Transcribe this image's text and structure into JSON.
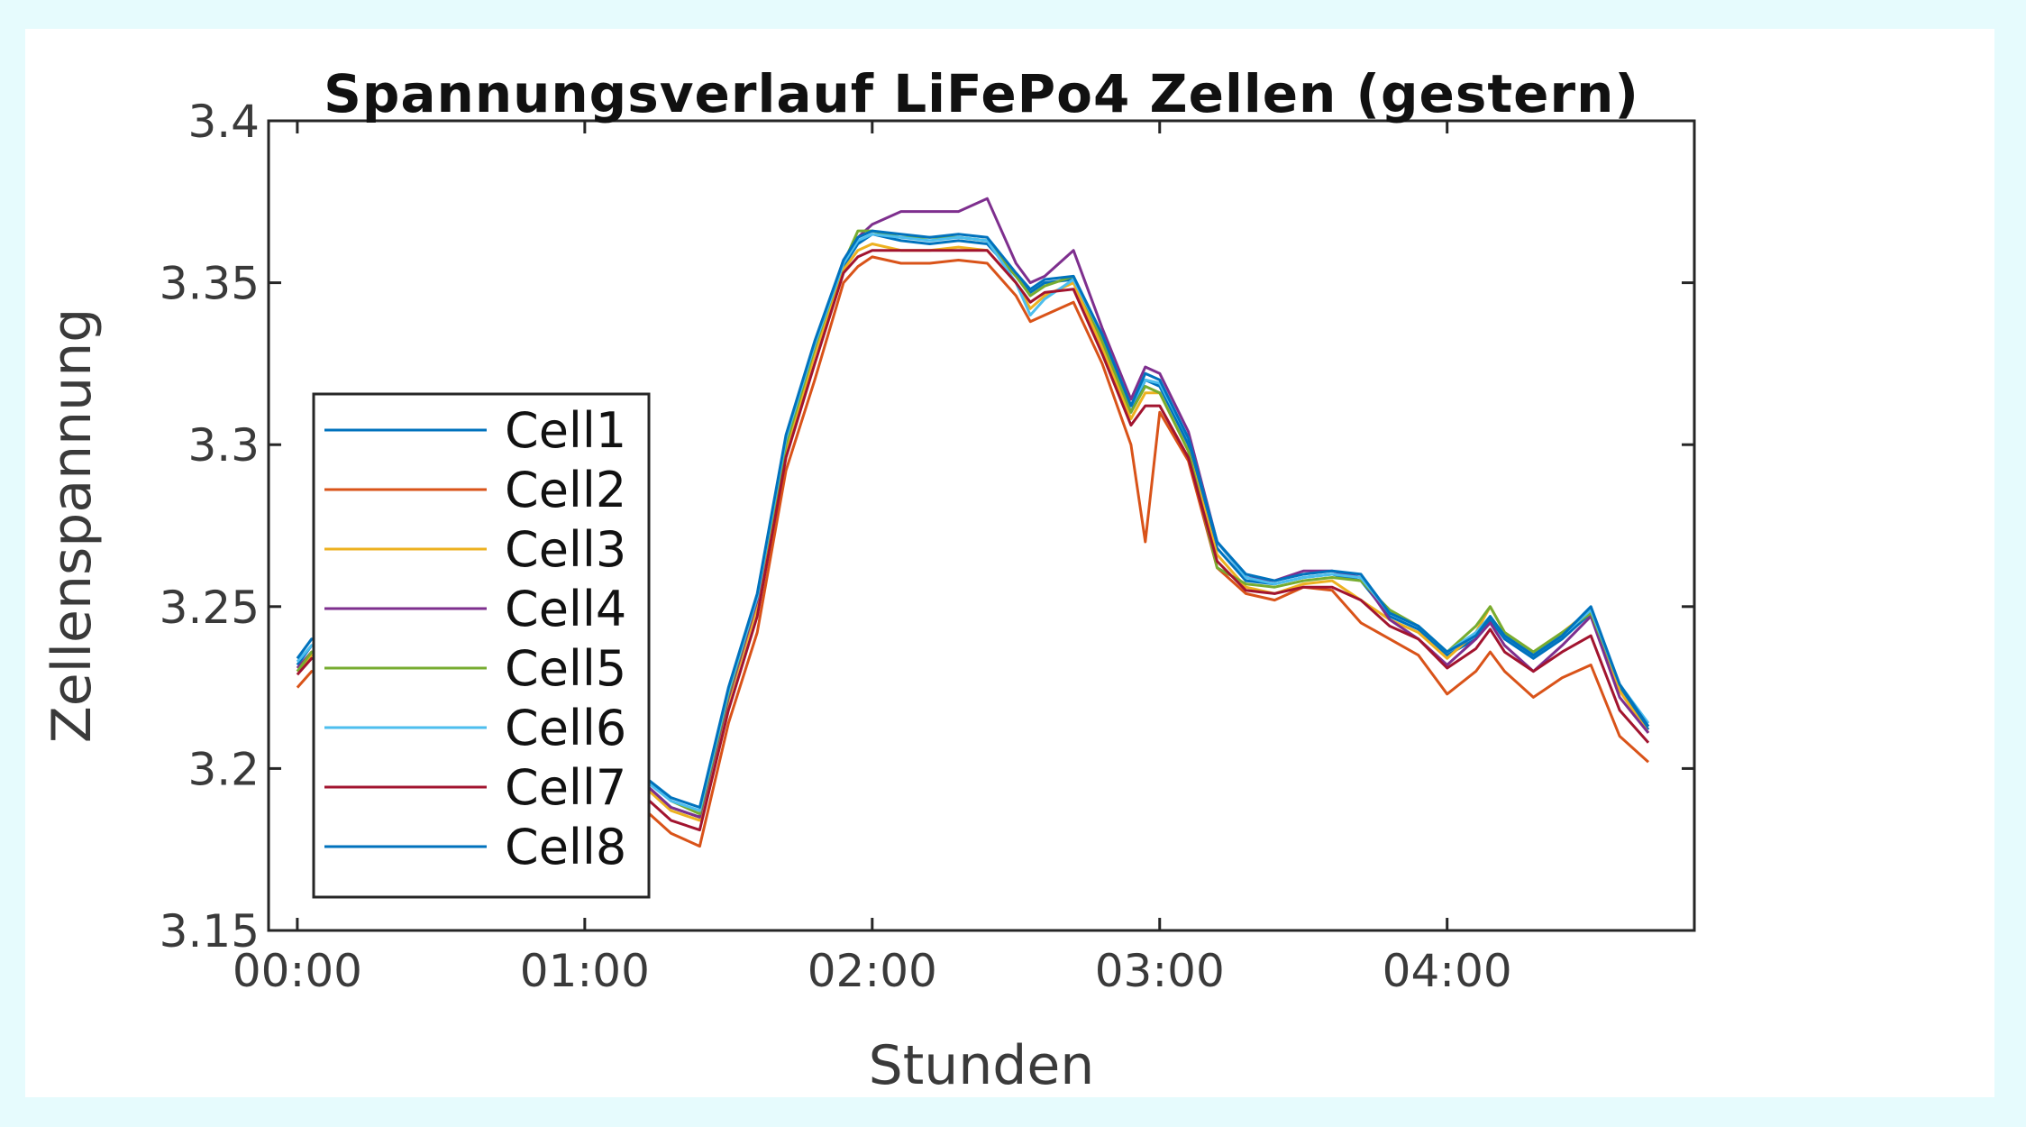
{
  "chart_data": {
    "type": "line",
    "title": "Spannungsverlauf LiFePo4 Zellen (gestern)",
    "xlabel": "Stunden",
    "ylabel": "Zellenspannung",
    "xlim": [
      -0.1,
      4.86
    ],
    "ylim": [
      3.15,
      3.4
    ],
    "x_ticks": [
      {
        "value": 0,
        "label": "00:00"
      },
      {
        "value": 1,
        "label": "01:00"
      },
      {
        "value": 2,
        "label": "02:00"
      },
      {
        "value": 3,
        "label": "03:00"
      },
      {
        "value": 4,
        "label": "04:00"
      }
    ],
    "y_ticks": [
      {
        "value": 3.15,
        "label": "3.15"
      },
      {
        "value": 3.2,
        "label": "3.2"
      },
      {
        "value": 3.25,
        "label": "3.25"
      },
      {
        "value": 3.3,
        "label": "3.3"
      },
      {
        "value": 3.35,
        "label": "3.35"
      },
      {
        "value": 3.4,
        "label": "3.4"
      }
    ],
    "grid": false,
    "legend_position": "left",
    "x": [
      0.0,
      0.05,
      0.2,
      0.5,
      0.8,
      1.1,
      1.2,
      1.3,
      1.4,
      1.5,
      1.6,
      1.7,
      1.8,
      1.9,
      1.95,
      2.0,
      2.1,
      2.2,
      2.3,
      2.4,
      2.5,
      2.55,
      2.6,
      2.7,
      2.8,
      2.9,
      2.95,
      3.0,
      3.1,
      3.2,
      3.3,
      3.4,
      3.5,
      3.6,
      3.7,
      3.8,
      3.9,
      4.0,
      4.1,
      4.15,
      4.2,
      4.3,
      4.4,
      4.5,
      4.6,
      4.7
    ],
    "series": [
      {
        "name": "Cell1",
        "color": "#0072bd",
        "values": [
          3.232,
          3.238,
          3.235,
          3.226,
          3.215,
          3.206,
          3.196,
          3.188,
          3.185,
          3.222,
          3.252,
          3.3,
          3.33,
          3.355,
          3.362,
          3.365,
          3.363,
          3.362,
          3.363,
          3.362,
          3.352,
          3.347,
          3.35,
          3.351,
          3.332,
          3.31,
          3.32,
          3.318,
          3.3,
          3.268,
          3.258,
          3.257,
          3.259,
          3.26,
          3.258,
          3.247,
          3.243,
          3.235,
          3.24,
          3.246,
          3.24,
          3.234,
          3.24,
          3.248,
          3.225,
          3.212
        ]
      },
      {
        "name": "Cell2",
        "color": "#d95319",
        "values": [
          3.225,
          3.23,
          3.228,
          3.218,
          3.208,
          3.198,
          3.188,
          3.18,
          3.176,
          3.214,
          3.242,
          3.292,
          3.32,
          3.35,
          3.355,
          3.358,
          3.356,
          3.356,
          3.357,
          3.356,
          3.346,
          3.338,
          3.34,
          3.344,
          3.325,
          3.3,
          3.27,
          3.31,
          3.295,
          3.262,
          3.254,
          3.252,
          3.256,
          3.255,
          3.245,
          3.24,
          3.235,
          3.223,
          3.23,
          3.236,
          3.23,
          3.222,
          3.228,
          3.232,
          3.21,
          3.202
        ]
      },
      {
        "name": "Cell3",
        "color": "#edb120",
        "values": [
          3.23,
          3.235,
          3.233,
          3.224,
          3.213,
          3.204,
          3.195,
          3.187,
          3.184,
          3.221,
          3.25,
          3.298,
          3.328,
          3.354,
          3.36,
          3.362,
          3.36,
          3.36,
          3.361,
          3.36,
          3.35,
          3.342,
          3.346,
          3.35,
          3.33,
          3.308,
          3.316,
          3.316,
          3.298,
          3.266,
          3.256,
          3.254,
          3.257,
          3.258,
          3.252,
          3.246,
          3.242,
          3.234,
          3.242,
          3.25,
          3.242,
          3.236,
          3.242,
          3.249,
          3.224,
          3.211
        ]
      },
      {
        "name": "Cell4",
        "color": "#7e2f8e",
        "values": [
          3.231,
          3.236,
          3.234,
          3.225,
          3.214,
          3.205,
          3.196,
          3.188,
          3.185,
          3.222,
          3.252,
          3.302,
          3.33,
          3.357,
          3.364,
          3.368,
          3.372,
          3.372,
          3.372,
          3.376,
          3.356,
          3.35,
          3.352,
          3.36,
          3.336,
          3.314,
          3.324,
          3.322,
          3.304,
          3.27,
          3.259,
          3.258,
          3.261,
          3.261,
          3.259,
          3.246,
          3.24,
          3.232,
          3.24,
          3.245,
          3.238,
          3.23,
          3.238,
          3.247,
          3.222,
          3.211
        ]
      },
      {
        "name": "Cell5",
        "color": "#77ac30",
        "values": [
          3.23,
          3.236,
          3.234,
          3.226,
          3.215,
          3.206,
          3.198,
          3.19,
          3.186,
          3.223,
          3.253,
          3.3,
          3.33,
          3.356,
          3.366,
          3.366,
          3.364,
          3.364,
          3.364,
          3.363,
          3.352,
          3.346,
          3.349,
          3.352,
          3.332,
          3.31,
          3.318,
          3.316,
          3.298,
          3.262,
          3.257,
          3.256,
          3.258,
          3.259,
          3.258,
          3.249,
          3.244,
          3.236,
          3.244,
          3.25,
          3.242,
          3.236,
          3.242,
          3.248,
          3.226,
          3.213
        ]
      },
      {
        "name": "Cell6",
        "color": "#4dbeee",
        "values": [
          3.233,
          3.238,
          3.236,
          3.227,
          3.216,
          3.207,
          3.197,
          3.19,
          3.187,
          3.224,
          3.253,
          3.302,
          3.331,
          3.356,
          3.363,
          3.365,
          3.364,
          3.363,
          3.364,
          3.363,
          3.35,
          3.34,
          3.345,
          3.351,
          3.334,
          3.312,
          3.32,
          3.319,
          3.302,
          3.27,
          3.259,
          3.257,
          3.259,
          3.26,
          3.259,
          3.248,
          3.244,
          3.236,
          3.242,
          3.247,
          3.241,
          3.235,
          3.241,
          3.249,
          3.226,
          3.214
        ]
      },
      {
        "name": "Cell7",
        "color": "#a2142f",
        "values": [
          3.229,
          3.234,
          3.232,
          3.222,
          3.211,
          3.202,
          3.192,
          3.184,
          3.181,
          3.218,
          3.247,
          3.296,
          3.325,
          3.353,
          3.358,
          3.36,
          3.36,
          3.36,
          3.36,
          3.36,
          3.35,
          3.344,
          3.347,
          3.348,
          3.328,
          3.306,
          3.312,
          3.312,
          3.296,
          3.264,
          3.255,
          3.254,
          3.256,
          3.256,
          3.252,
          3.244,
          3.24,
          3.231,
          3.237,
          3.243,
          3.236,
          3.23,
          3.236,
          3.241,
          3.218,
          3.208
        ]
      },
      {
        "name": "Cell8",
        "color": "#0072bd",
        "values": [
          3.234,
          3.24,
          3.237,
          3.228,
          3.217,
          3.208,
          3.198,
          3.191,
          3.188,
          3.225,
          3.254,
          3.303,
          3.332,
          3.357,
          3.364,
          3.366,
          3.365,
          3.364,
          3.365,
          3.364,
          3.353,
          3.348,
          3.351,
          3.352,
          3.334,
          3.312,
          3.322,
          3.32,
          3.302,
          3.27,
          3.26,
          3.258,
          3.26,
          3.261,
          3.26,
          3.248,
          3.244,
          3.236,
          3.241,
          3.247,
          3.241,
          3.235,
          3.241,
          3.25,
          3.226,
          3.213
        ]
      }
    ]
  }
}
